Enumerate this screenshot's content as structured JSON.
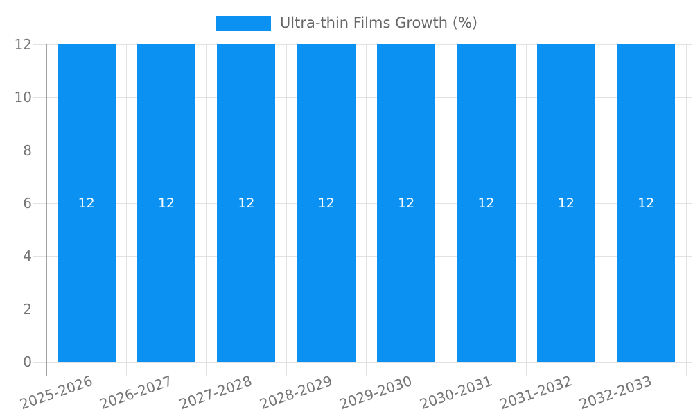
{
  "chart_data": {
    "type": "bar",
    "title": "Ultra-thin Films Growth (%)",
    "categories": [
      "2025-2026",
      "2026-2027",
      "2027-2028",
      "2028-2029",
      "2029-2030",
      "2030-2031",
      "2031-2032",
      "2032-2033"
    ],
    "series": [
      {
        "name": "Ultra-thin Films Growth (%)",
        "values": [
          12,
          12,
          12,
          12,
          12,
          12,
          12,
          12
        ]
      }
    ],
    "bar_value_labels": [
      "12",
      "12",
      "12",
      "12",
      "12",
      "12",
      "12",
      "12"
    ],
    "xlabel": "",
    "ylabel": "",
    "ylim": [
      0,
      12
    ],
    "yticks": [
      0,
      2,
      4,
      6,
      8,
      10,
      12
    ],
    "ytick_labels": [
      "0",
      "2",
      "4",
      "6",
      "8",
      "10",
      "12"
    ],
    "grid": "on",
    "legend_position": "top-center",
    "x_tick_rotation_deg": -19
  },
  "colors": {
    "bar": "#0a91f2",
    "grid": "#e2e2e2",
    "axis": "#a3a3a3",
    "tick_label": "#757575",
    "legend_text": "#666666",
    "bar_label": "#ffffff",
    "background": "#ffffff"
  }
}
